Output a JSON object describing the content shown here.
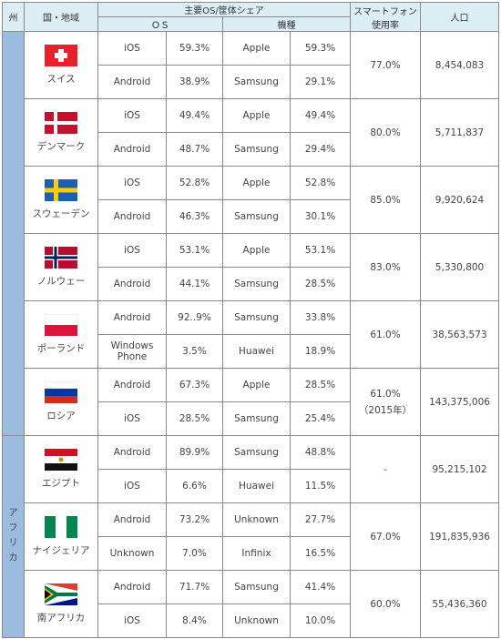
{
  "header": {
    "region": "州",
    "country": "国・地域",
    "share": "主要OS/筐体シェア",
    "os": "ＯＳ",
    "model": "機種",
    "usage": "スマートフォン使用率",
    "population": "人口"
  },
  "regions": [
    {
      "countries": [
        {
          "name": "スイス",
          "rows": [
            [
              "iOS",
              "59.3%",
              "Apple",
              "59.3%"
            ],
            [
              "Android",
              "38.9%",
              "Samsung",
              "29.1%"
            ]
          ],
          "usage": "77.0%",
          "population": "8,454,083"
        },
        {
          "name": "デンマーク",
          "rows": [
            [
              "iOS",
              "49.4%",
              "Apple",
              "49.4%"
            ],
            [
              "Android",
              "48.7%",
              "Samsung",
              "29.4%"
            ]
          ],
          "usage": "80.0%",
          "population": "5,711,837"
        },
        {
          "name": "スウェーデン",
          "rows": [
            [
              "iOS",
              "52.8%",
              "Apple",
              "52.8%"
            ],
            [
              "Android",
              "46.3%",
              "Samsung",
              "30.1%"
            ]
          ],
          "usage": "85.0%",
          "population": "9,920,624"
        },
        {
          "name": "ノルウェー",
          "rows": [
            [
              "iOS",
              "53.1%",
              "Apple",
              "53.1%"
            ],
            [
              "Android",
              "44.1%",
              "Samsung",
              "28.5%"
            ]
          ],
          "usage": "83.0%",
          "population": "5,330,800"
        },
        {
          "name": "ポーランド",
          "rows": [
            [
              "Android",
              "92..9%",
              "Samsung",
              "33.8%"
            ],
            [
              "Windows Phone",
              "3.5%",
              "Huawei",
              "18.9%"
            ]
          ],
          "usage": "61.0%",
          "population": "38,563,573"
        },
        {
          "name": "ロシア",
          "rows": [
            [
              "Android",
              "67.3%",
              "Apple",
              "28.5%"
            ],
            [
              "iOS",
              "28.5%",
              "Samsung",
              "25.4%"
            ]
          ],
          "usage": "61.0%",
          "usage_note": "（2015年）",
          "population": "143,375,006"
        }
      ]
    },
    {
      "name": "アフリカ",
      "countries": [
        {
          "name": "エジプト",
          "rows": [
            [
              "Android",
              "89.9%",
              "Samsung",
              "48.8%"
            ],
            [
              "iOS",
              "6.6%",
              "Huawei",
              "11.5%"
            ]
          ],
          "usage": "-",
          "population": "95,215,102"
        },
        {
          "name": "ナイジェリア",
          "rows": [
            [
              "Android",
              "73.2%",
              "Unknown",
              "27.7%"
            ],
            [
              "Unknown",
              "7.0%",
              "Infinix",
              "16.5%"
            ]
          ],
          "usage": "67.0%",
          "population": "191,835,936"
        },
        {
          "name": "南アフリカ",
          "rows": [
            [
              "Android",
              "71.7%",
              "Samsung",
              "41.4%"
            ],
            [
              "iOS",
              "8.4%",
              "Unknown",
              "10.0%"
            ]
          ],
          "usage": "60.0%",
          "population": "55,436,360"
        }
      ]
    }
  ]
}
